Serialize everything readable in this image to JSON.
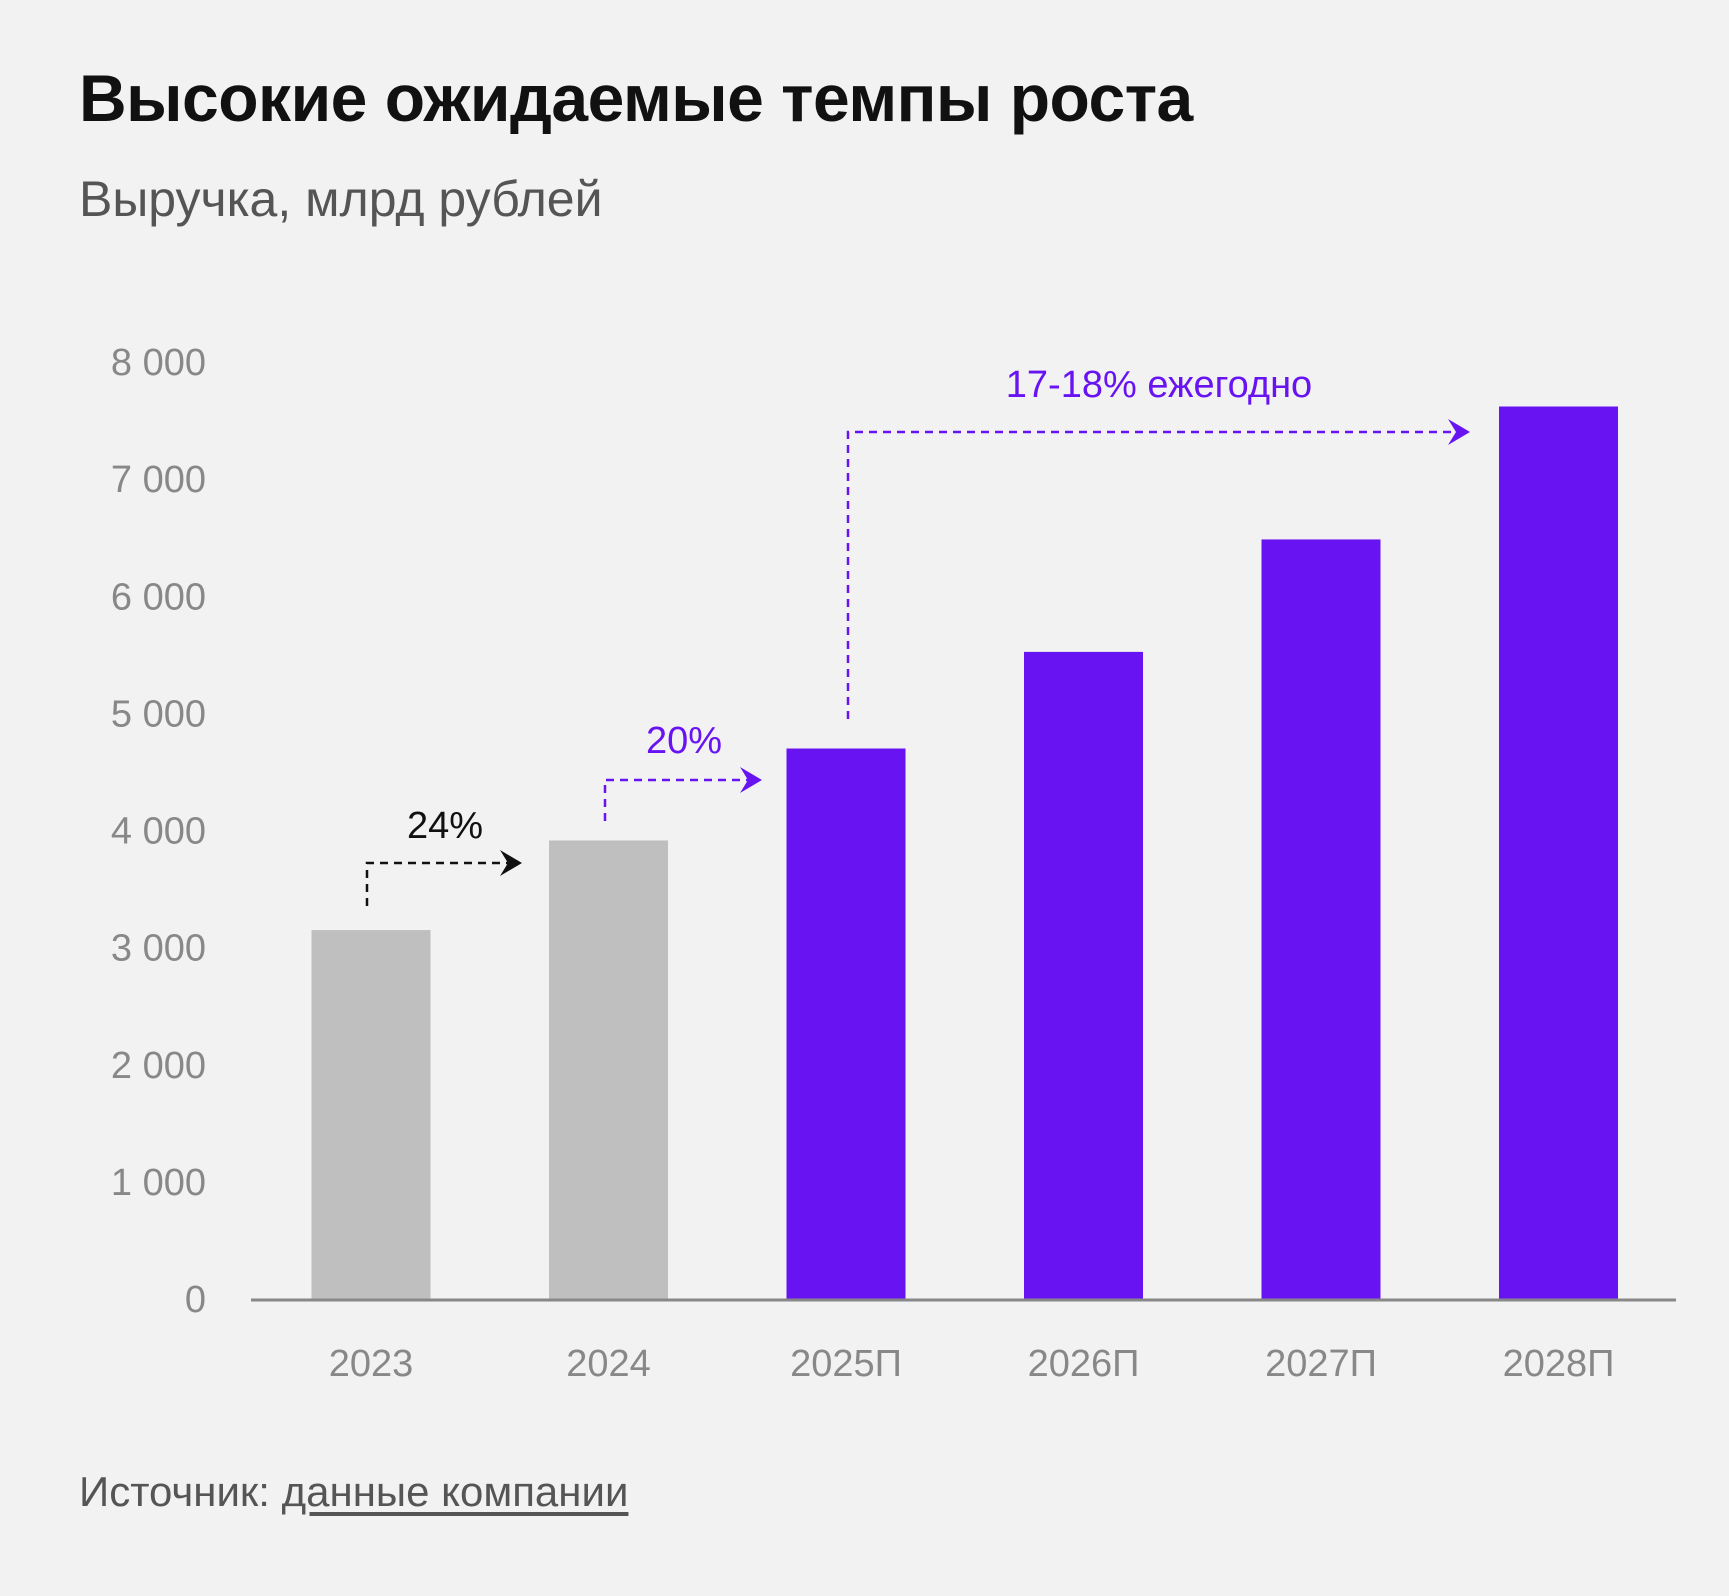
{
  "header": {
    "title": "Высокие ожидаемые темпы роста",
    "subtitle": "Выручка, млрд рублей"
  },
  "footer": {
    "source_label": "Источник:",
    "source_link": "данные компании"
  },
  "colors": {
    "actual": "#bfbfbf",
    "forecast": "#6813f2",
    "background": "#f2f2f2",
    "axis": "#888888"
  },
  "chart_data": {
    "type": "bar",
    "title": "Высокие ожидаемые темпы роста",
    "ylabel": "Выручка, млрд рублей",
    "categories": [
      "2023",
      "2024",
      "2025П",
      "2026П",
      "2027П",
      "2028П"
    ],
    "values": [
      3150,
      3915,
      4700,
      5525,
      6485,
      7620
    ],
    "forecast": [
      false,
      false,
      true,
      true,
      true,
      true
    ],
    "ylim": [
      0,
      8000
    ],
    "yticks": [
      0,
      1000,
      2000,
      3000,
      4000,
      5000,
      6000,
      7000,
      8000
    ],
    "ytick_labels": [
      "0",
      "1 000",
      "2 000",
      "3 000",
      "4 000",
      "5 000",
      "6 000",
      "7 000",
      "8 000"
    ],
    "grid": false,
    "annotations": [
      {
        "text": "24%",
        "from": "2023",
        "to": "2024",
        "color": "#111111"
      },
      {
        "text": "20%",
        "from": "2024",
        "to": "2025П",
        "color": "#6813f2"
      },
      {
        "text": "17-18% ежегодно",
        "from": "2025П",
        "to": "2028П",
        "color": "#6813f2"
      }
    ]
  }
}
